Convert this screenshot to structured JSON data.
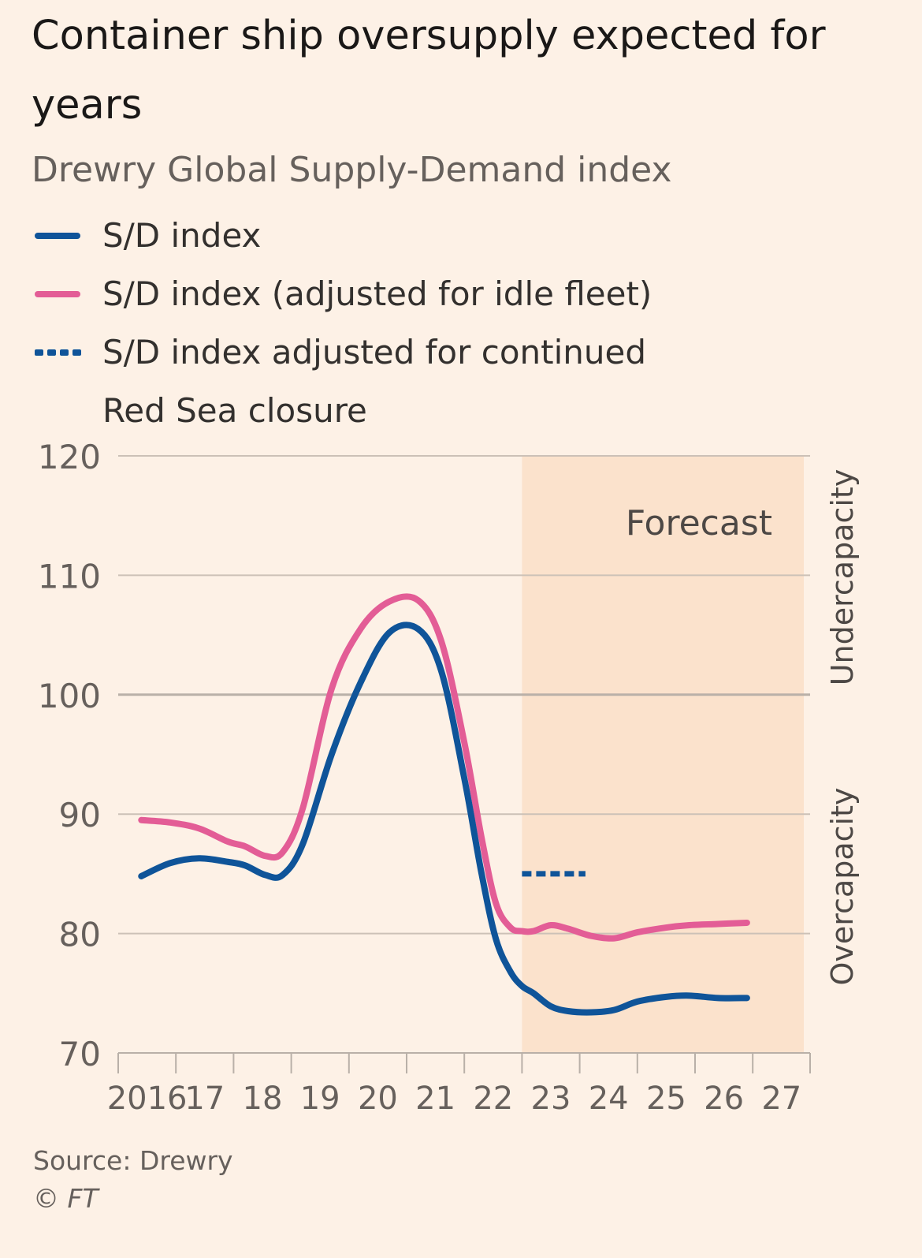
{
  "title": "Container ship oversupply expected for years",
  "subtitle": "Drewry Global Supply-Demand index",
  "legend": [
    {
      "label": "S/D index",
      "color": "#0f5499",
      "style": "solid"
    },
    {
      "label": "S/D index (adjusted for idle fleet)",
      "color": "#e35d96",
      "style": "solid"
    },
    {
      "label_line1": "S/D index adjusted for continued",
      "label_line2": "Red Sea closure",
      "color": "#0f5499",
      "style": "dotted"
    }
  ],
  "forecast_label": "Forecast",
  "right_labels": {
    "upper": "Undercapacity",
    "lower": "Overcapacity"
  },
  "source": "Source: Drewry",
  "credit": "© FT",
  "colors": {
    "background": "#fdf1e6",
    "forecast_band": "#fbe2cc",
    "grid": "#ccc1b7",
    "text": "#66605c"
  },
  "chart_data": {
    "type": "line",
    "title": "Container ship oversupply expected for years",
    "subtitle": "Drewry Global Supply-Demand index",
    "ylim": [
      70,
      120
    ],
    "yticks": [
      70,
      80,
      90,
      100,
      110,
      120
    ],
    "xlim": [
      2016,
      2028
    ],
    "xticks": [
      2016,
      2017,
      2018,
      2019,
      2020,
      2021,
      2022,
      2023,
      2024,
      2025,
      2026,
      2027
    ],
    "xtick_labels": [
      "2016",
      "17",
      "18",
      "19",
      "20",
      "21",
      "22",
      "23",
      "24",
      "25",
      "26",
      "27"
    ],
    "forecast_start": 2023,
    "series": [
      {
        "name": "S/D index",
        "color": "#0f5499",
        "style": "solid",
        "x": [
          2016.4,
          2016.9,
          2017.4,
          2017.9,
          2018.2,
          2018.55,
          2018.85,
          2019.2,
          2019.7,
          2020.2,
          2020.7,
          2021.2,
          2021.6,
          2022.0,
          2022.3,
          2022.55,
          2022.8,
          2023.0,
          2023.2,
          2023.5,
          2023.8,
          2024.2,
          2024.6,
          2025.0,
          2025.5,
          2025.9,
          2026.4,
          2026.9
        ],
        "y": [
          84.8,
          85.9,
          86.3,
          86.0,
          85.7,
          84.9,
          84.9,
          87.5,
          95.0,
          101.0,
          105.2,
          105.5,
          102.0,
          93.0,
          85.0,
          79.5,
          76.8,
          75.6,
          75.0,
          73.9,
          73.5,
          73.4,
          73.6,
          74.3,
          74.7,
          74.8,
          74.6,
          74.6
        ]
      },
      {
        "name": "S/D index (adjusted for idle fleet)",
        "color": "#e35d96",
        "style": "solid",
        "x": [
          2016.4,
          2016.9,
          2017.4,
          2017.9,
          2018.2,
          2018.55,
          2018.85,
          2019.2,
          2019.7,
          2020.2,
          2020.7,
          2021.2,
          2021.6,
          2022.0,
          2022.3,
          2022.55,
          2022.8,
          2023.0,
          2023.2,
          2023.5,
          2023.8,
          2024.2,
          2024.6,
          2025.0,
          2025.5,
          2025.9,
          2026.4,
          2026.9
        ],
        "y": [
          89.5,
          89.3,
          88.8,
          87.7,
          87.3,
          86.5,
          86.8,
          90.5,
          100.5,
          105.5,
          107.8,
          107.9,
          104.5,
          96.0,
          88.0,
          82.5,
          80.5,
          80.2,
          80.2,
          80.7,
          80.4,
          79.8,
          79.6,
          80.1,
          80.5,
          80.7,
          80.8,
          80.9
        ]
      },
      {
        "name": "S/D index adjusted for continued Red Sea closure",
        "color": "#0f5499",
        "style": "dotted",
        "x": [
          2023.0,
          2024.1
        ],
        "y": [
          85.0,
          85.0
        ]
      }
    ]
  }
}
